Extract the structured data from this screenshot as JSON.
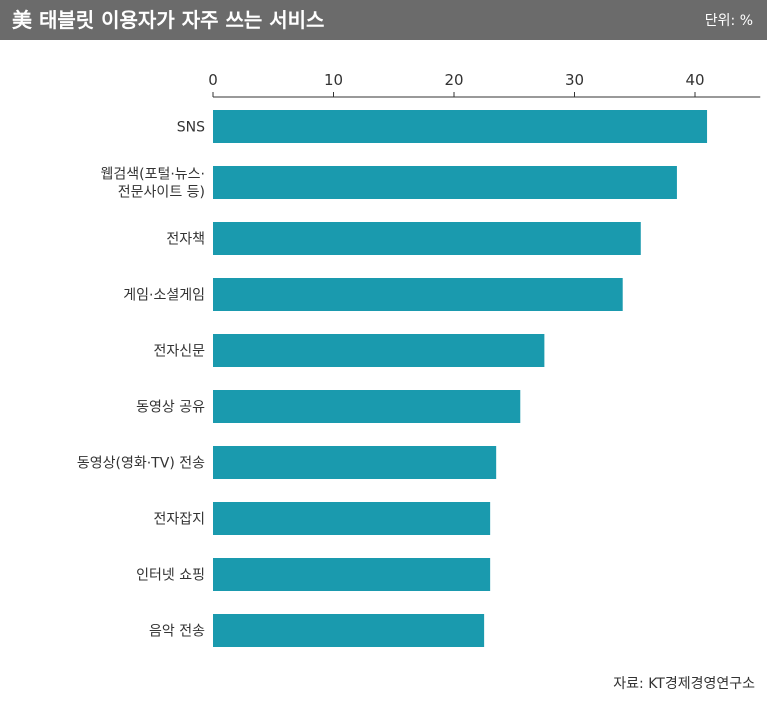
{
  "header": {
    "title": "美 태블릿 이용자가 자주 쓰는 서비스",
    "unit": "단위: %"
  },
  "source": "자료: KT경제경영연구소",
  "colors": {
    "bar": "#1a9aae",
    "header_bg": "#6b6b6b",
    "axis": "#333333"
  },
  "chart_data": {
    "type": "bar",
    "orientation": "horizontal",
    "title": "美 태블릿 이용자가 자주 쓰는 서비스",
    "xlabel": "",
    "ylabel": "",
    "xlim": [
      0,
      45
    ],
    "x_ticks": [
      0,
      10,
      20,
      30,
      40
    ],
    "x_axis_position": "top",
    "grid": false,
    "categories": [
      [
        "SNS"
      ],
      [
        "웹검색(포털·뉴스·",
        "전문사이트 등)"
      ],
      [
        "전자책"
      ],
      [
        "게임·소셜게임"
      ],
      [
        "전자신문"
      ],
      [
        "동영상 공유"
      ],
      [
        "동영상(영화·TV) 전송"
      ],
      [
        "전자잡지"
      ],
      [
        "인터넷 쇼핑"
      ],
      [
        "음악 전송"
      ]
    ],
    "values": [
      41,
      38.5,
      35.5,
      34,
      27.5,
      25.5,
      23.5,
      23,
      23,
      22.5
    ]
  }
}
